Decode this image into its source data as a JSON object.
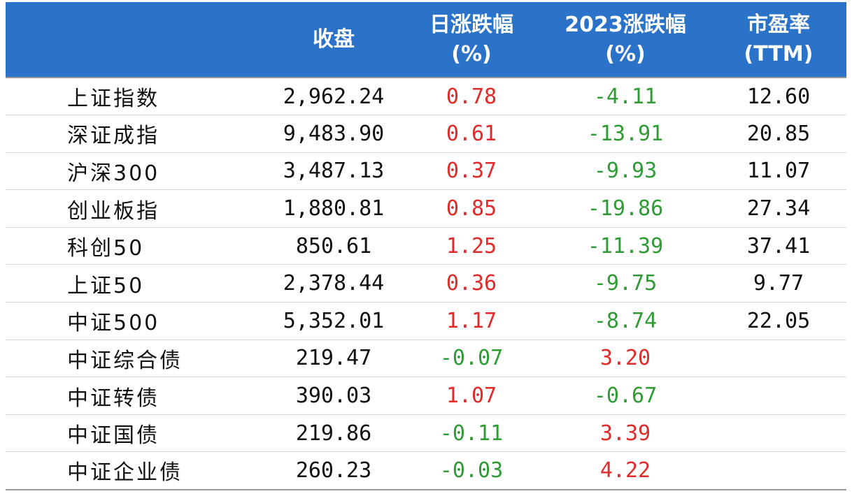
{
  "header": {
    "name": "",
    "close": "收盘",
    "daily_line1": "日涨跌幅",
    "daily_line2": "(%)",
    "ytd_line1": "2023涨跌幅",
    "ytd_line2": "(%)",
    "pe_line1": "市盈率",
    "pe_line2": "(TTM)"
  },
  "colors": {
    "header_bg": "#2a73c9",
    "up": "#e02b2b",
    "down": "#2e9b34"
  },
  "rows": [
    {
      "name": "上证指数",
      "close": "2,962.24",
      "daily": "0.78",
      "ytd": "-4.11",
      "pe": "12.60"
    },
    {
      "name": "深证成指",
      "close": "9,483.90",
      "daily": "0.61",
      "ytd": "-13.91",
      "pe": "20.85"
    },
    {
      "name": "沪深300",
      "close": "3,487.13",
      "daily": "0.37",
      "ytd": "-9.93",
      "pe": "11.07"
    },
    {
      "name": "创业板指",
      "close": "1,880.81",
      "daily": "0.85",
      "ytd": "-19.86",
      "pe": "27.34"
    },
    {
      "name": "科创50",
      "close": "850.61",
      "daily": "1.25",
      "ytd": "-11.39",
      "pe": "37.41"
    },
    {
      "name": "上证50",
      "close": "2,378.44",
      "daily": "0.36",
      "ytd": "-9.75",
      "pe": "9.77"
    },
    {
      "name": "中证500",
      "close": "5,352.01",
      "daily": "1.17",
      "ytd": "-8.74",
      "pe": "22.05"
    },
    {
      "name": "中证综合债",
      "close": "219.47",
      "daily": "-0.07",
      "ytd": "3.20",
      "pe": ""
    },
    {
      "name": "中证转债",
      "close": "390.03",
      "daily": "1.07",
      "ytd": "-0.67",
      "pe": ""
    },
    {
      "name": "中证国债",
      "close": "219.86",
      "daily": "-0.11",
      "ytd": "3.39",
      "pe": ""
    },
    {
      "name": "中证企业债",
      "close": "260.23",
      "daily": "-0.03",
      "ytd": "4.22",
      "pe": ""
    }
  ]
}
